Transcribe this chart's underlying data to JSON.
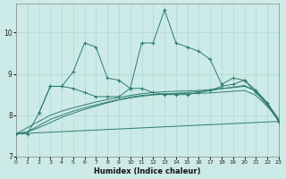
{
  "xlabel": "Humidex (Indice chaleur)",
  "xlim": [
    0,
    23
  ],
  "ylim": [
    7,
    10.7
  ],
  "yticks": [
    7,
    8,
    9,
    10
  ],
  "xticks": [
    0,
    1,
    2,
    3,
    4,
    5,
    6,
    7,
    8,
    9,
    10,
    11,
    12,
    13,
    14,
    15,
    16,
    17,
    18,
    19,
    20,
    21,
    22,
    23
  ],
  "bg_color": "#cceae7",
  "line_color": "#2e7d6e",
  "grid_color": "#b0d8d4",
  "jagged1_x": [
    0,
    1,
    2,
    3,
    4,
    5,
    6,
    7,
    8,
    9,
    10,
    11,
    12,
    13,
    14,
    15,
    16,
    17,
    18,
    19,
    20,
    21,
    22,
    23
  ],
  "jagged1_y": [
    7.55,
    7.55,
    8.05,
    8.7,
    8.7,
    9.05,
    9.75,
    9.65,
    8.9,
    8.85,
    8.65,
    9.75,
    9.75,
    10.55,
    9.75,
    9.65,
    9.55,
    9.35,
    8.75,
    8.9,
    8.85,
    8.55,
    8.25,
    7.85
  ],
  "jagged2_x": [
    2,
    3,
    4,
    5,
    6,
    7,
    8,
    9,
    10,
    11,
    12,
    13,
    14,
    15,
    16,
    17,
    18,
    19,
    20,
    21,
    22,
    23
  ],
  "jagged2_y": [
    8.05,
    8.7,
    8.7,
    8.65,
    8.55,
    8.45,
    8.45,
    8.45,
    8.65,
    8.65,
    8.55,
    8.5,
    8.5,
    8.5,
    8.55,
    8.6,
    8.7,
    8.75,
    8.85,
    8.6,
    8.3,
    7.85
  ],
  "trend1_x": [
    0,
    1,
    2,
    3,
    4,
    5,
    6,
    7,
    8,
    9,
    10,
    11,
    12,
    13,
    14,
    15,
    16,
    17,
    18,
    19,
    20,
    21,
    22,
    23
  ],
  "trend1_y": [
    7.55,
    7.7,
    7.85,
    8.0,
    8.1,
    8.18,
    8.25,
    8.32,
    8.38,
    8.43,
    8.48,
    8.52,
    8.55,
    8.57,
    8.58,
    8.59,
    8.6,
    8.62,
    8.65,
    8.67,
    8.7,
    8.6,
    8.3,
    7.9
  ],
  "trend2_x": [
    0,
    1,
    2,
    3,
    4,
    5,
    6,
    7,
    8,
    9,
    10,
    11,
    12,
    13,
    14,
    15,
    16,
    17,
    18,
    19,
    20,
    21,
    22,
    23
  ],
  "trend2_y": [
    7.55,
    7.6,
    7.75,
    7.9,
    8.0,
    8.1,
    8.18,
    8.25,
    8.32,
    8.38,
    8.44,
    8.48,
    8.5,
    8.52,
    8.53,
    8.55,
    8.57,
    8.6,
    8.64,
    8.68,
    8.72,
    8.58,
    8.28,
    7.9
  ],
  "trend3_x": [
    0,
    1,
    2,
    3,
    4,
    5,
    6,
    7,
    8,
    9,
    10,
    11,
    12,
    13,
    14,
    15,
    16,
    17,
    18,
    19,
    20,
    21,
    22,
    23
  ],
  "trend3_y": [
    7.55,
    7.6,
    7.7,
    7.82,
    7.95,
    8.05,
    8.14,
    8.22,
    8.3,
    8.37,
    8.42,
    8.46,
    8.49,
    8.51,
    8.52,
    8.52,
    8.53,
    8.54,
    8.56,
    8.58,
    8.6,
    8.48,
    8.22,
    7.88
  ],
  "trend4_x": [
    0,
    23
  ],
  "trend4_y": [
    7.55,
    7.85
  ]
}
